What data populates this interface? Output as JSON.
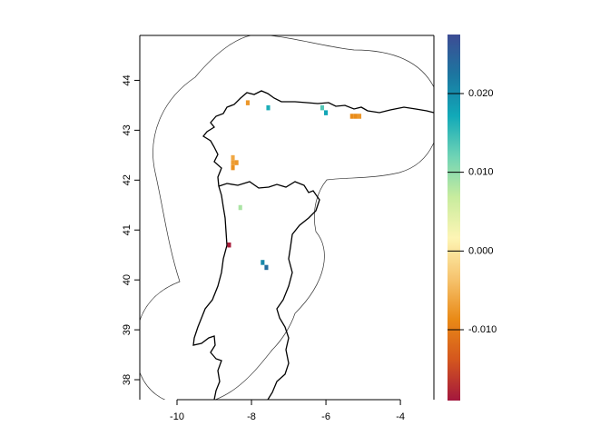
{
  "chart_data": {
    "type": "heatmap",
    "xlim": [
      -11,
      -3.1
    ],
    "ylim": [
      37.6,
      44.9
    ],
    "x_ticks": [
      "-10",
      "-8",
      "-6",
      "-4"
    ],
    "x_tick_values": [
      -10,
      -8,
      -6,
      -4
    ],
    "y_ticks": [
      "38",
      "39",
      "40",
      "41",
      "42",
      "43",
      "44"
    ],
    "y_tick_values": [
      38,
      39,
      40,
      41,
      42,
      43,
      44
    ],
    "colorbar": {
      "min": -0.019,
      "max": 0.0275,
      "tick_labels": [
        "-0.010",
        "0.000",
        "0.010",
        "0.020"
      ],
      "tick_values": [
        -0.01,
        0.0,
        0.01,
        0.02
      ],
      "colors": [
        "#a3173d",
        "#d4561e",
        "#e98a16",
        "#f6c46f",
        "#fdf5b4",
        "#c8ec9e",
        "#6fd3b5",
        "#11a9b8",
        "#1c76a0",
        "#3d4c94"
      ]
    },
    "cells": [
      {
        "lon": -8.1,
        "lat": 43.55,
        "value": -0.0075
      },
      {
        "lon": -7.55,
        "lat": 43.45,
        "value": 0.0165
      },
      {
        "lon": -6.1,
        "lat": 43.45,
        "value": 0.0135
      },
      {
        "lon": -6.0,
        "lat": 43.35,
        "value": 0.0175
      },
      {
        "lon": -5.3,
        "lat": 43.28,
        "value": -0.0085
      },
      {
        "lon": -5.2,
        "lat": 43.28,
        "value": -0.0085
      },
      {
        "lon": -5.1,
        "lat": 43.28,
        "value": -0.0075
      },
      {
        "lon": -8.5,
        "lat": 42.45,
        "value": -0.006
      },
      {
        "lon": -8.5,
        "lat": 42.35,
        "value": -0.007
      },
      {
        "lon": -8.4,
        "lat": 42.35,
        "value": -0.0075
      },
      {
        "lon": -8.5,
        "lat": 42.25,
        "value": -0.008
      },
      {
        "lon": -8.3,
        "lat": 41.45,
        "value": 0.0085
      },
      {
        "lon": -8.6,
        "lat": 40.7,
        "value": -0.0185
      },
      {
        "lon": -7.7,
        "lat": 40.35,
        "value": 0.0205
      },
      {
        "lon": -7.6,
        "lat": 40.25,
        "value": 0.0235
      }
    ]
  }
}
